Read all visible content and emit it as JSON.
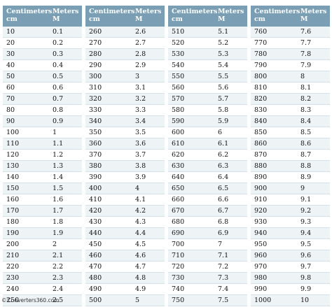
{
  "columns": [
    {
      "header_cm_line1": "Centimeters",
      "header_cm_line2": "cm",
      "header_m_line1": "Meters",
      "header_m_line2": "M",
      "rows": [
        [
          "10",
          "0.1"
        ],
        [
          "20",
          "0.2"
        ],
        [
          "30",
          "0.3"
        ],
        [
          "40",
          "0.4"
        ],
        [
          "50",
          "0.5"
        ],
        [
          "60",
          "0.6"
        ],
        [
          "70",
          "0.7"
        ],
        [
          "80",
          "0.8"
        ],
        [
          "90",
          "0.9"
        ],
        [
          "100",
          "1"
        ],
        [
          "110",
          "1.1"
        ],
        [
          "120",
          "1.2"
        ],
        [
          "130",
          "1.3"
        ],
        [
          "140",
          "1.4"
        ],
        [
          "150",
          "1.5"
        ],
        [
          "160",
          "1.6"
        ],
        [
          "170",
          "1.7"
        ],
        [
          "180",
          "1.8"
        ],
        [
          "190",
          "1.9"
        ],
        [
          "200",
          "2"
        ],
        [
          "210",
          "2.1"
        ],
        [
          "220",
          "2.2"
        ],
        [
          "230",
          "2.3"
        ],
        [
          "240",
          "2.4"
        ],
        [
          "250",
          "2.5"
        ]
      ]
    },
    {
      "header_cm_line1": "Centimeters",
      "header_cm_line2": "cm",
      "header_m_line1": "Meters",
      "header_m_line2": "M",
      "rows": [
        [
          "260",
          "2.6"
        ],
        [
          "270",
          "2.7"
        ],
        [
          "280",
          "2.8"
        ],
        [
          "290",
          "2.9"
        ],
        [
          "300",
          "3"
        ],
        [
          "310",
          "3.1"
        ],
        [
          "320",
          "3.2"
        ],
        [
          "330",
          "3.3"
        ],
        [
          "340",
          "3.4"
        ],
        [
          "350",
          "3.5"
        ],
        [
          "360",
          "3.6"
        ],
        [
          "370",
          "3.7"
        ],
        [
          "380",
          "3.8"
        ],
        [
          "390",
          "3.9"
        ],
        [
          "400",
          "4"
        ],
        [
          "410",
          "4.1"
        ],
        [
          "420",
          "4.2"
        ],
        [
          "430",
          "4.3"
        ],
        [
          "440",
          "4.4"
        ],
        [
          "450",
          "4.5"
        ],
        [
          "460",
          "4.6"
        ],
        [
          "470",
          "4.7"
        ],
        [
          "480",
          "4.8"
        ],
        [
          "490",
          "4.9"
        ],
        [
          "500",
          "5"
        ]
      ]
    },
    {
      "header_cm_line1": "Centimeters",
      "header_cm_line2": "cm",
      "header_m_line1": "Meters",
      "header_m_line2": "M",
      "rows": [
        [
          "510",
          "5.1"
        ],
        [
          "520",
          "5.2"
        ],
        [
          "530",
          "5.3"
        ],
        [
          "540",
          "5.4"
        ],
        [
          "550",
          "5.5"
        ],
        [
          "560",
          "5.6"
        ],
        [
          "570",
          "5.7"
        ],
        [
          "580",
          "5.8"
        ],
        [
          "590",
          "5.9"
        ],
        [
          "600",
          "6"
        ],
        [
          "610",
          "6.1"
        ],
        [
          "620",
          "6.2"
        ],
        [
          "630",
          "6.3"
        ],
        [
          "640",
          "6.4"
        ],
        [
          "650",
          "6.5"
        ],
        [
          "660",
          "6.6"
        ],
        [
          "670",
          "6.7"
        ],
        [
          "680",
          "6.8"
        ],
        [
          "690",
          "6.9"
        ],
        [
          "700",
          "7"
        ],
        [
          "710",
          "7.1"
        ],
        [
          "720",
          "7.2"
        ],
        [
          "730",
          "7.3"
        ],
        [
          "740",
          "7.4"
        ],
        [
          "750",
          "7.5"
        ]
      ]
    },
    {
      "header_cm_line1": "Centimeters",
      "header_cm_line2": "cm",
      "header_m_line1": "Meters",
      "header_m_line2": "M",
      "rows": [
        [
          "760",
          "7.6"
        ],
        [
          "770",
          "7.7"
        ],
        [
          "780",
          "7.8"
        ],
        [
          "790",
          "7.9"
        ],
        [
          "800",
          "8"
        ],
        [
          "810",
          "8.1"
        ],
        [
          "820",
          "8.2"
        ],
        [
          "830",
          "8.3"
        ],
        [
          "840",
          "8.4"
        ],
        [
          "850",
          "8.5"
        ],
        [
          "860",
          "8.6"
        ],
        [
          "870",
          "8.7"
        ],
        [
          "880",
          "8.8"
        ],
        [
          "890",
          "8.9"
        ],
        [
          "900",
          "9"
        ],
        [
          "910",
          "9.1"
        ],
        [
          "920",
          "9.2"
        ],
        [
          "930",
          "9.3"
        ],
        [
          "940",
          "9.4"
        ],
        [
          "950",
          "9.5"
        ],
        [
          "960",
          "9.6"
        ],
        [
          "970",
          "9.7"
        ],
        [
          "980",
          "9.8"
        ],
        [
          "990",
          "9.9"
        ],
        [
          "1000",
          "10"
        ]
      ]
    }
  ],
  "footer": {
    "copyright_symbol": "©",
    "text": "Converters360.com"
  },
  "colors": {
    "header_bg": "#7a9fb4",
    "stripe": "#eef3f6"
  }
}
